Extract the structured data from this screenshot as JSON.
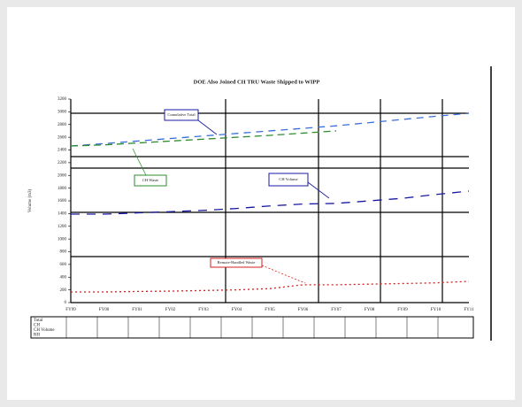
{
  "chart_data": {
    "type": "line",
    "title": "DOE Also Joined CH TRU Waste Shipped to WIPP",
    "y_label": "Volume (m3)",
    "categories": [
      "FY99",
      "FY00",
      "FY01",
      "FY02",
      "FY03",
      "FY04",
      "FY05",
      "FY06",
      "FY07",
      "FY08",
      "FY09",
      "FY10",
      "FY11"
    ],
    "series": [
      {
        "name": "Total",
        "color": "#3a6fd8",
        "dash": "8 6",
        "values": [
          2463,
          2500,
          2540,
          2580,
          2620,
          2660,
          2700,
          2740,
          2780,
          2830,
          2880,
          2930,
          2977
        ]
      },
      {
        "name": "CH",
        "color": "#2e8b2e",
        "dash": "8 5",
        "values": [
          2463,
          2480,
          2510,
          2540,
          2570,
          2600,
          2630,
          2665,
          2700,
          null,
          null,
          null,
          null
        ]
      },
      {
        "name": "CH Volume",
        "color": "#1a1aa0",
        "dash": "10 8",
        "values": [
          1391,
          1391,
          1410,
          1430,
          1450,
          1480,
          1520,
          1550,
          1560,
          1600,
          1640,
          1700,
          1753
        ]
      },
      {
        "name": "RH",
        "color": "#d42020",
        "dash": "2 3",
        "values": [
          167,
          167,
          175,
          180,
          190,
          200,
          220,
          280,
          280,
          290,
          300,
          310,
          334
        ]
      }
    ],
    "annotations": [
      "Cumulative Total",
      "CH Waste",
      "CH Volume",
      "Remote-Handled Waste"
    ],
    "ylim": [
      0,
      3200
    ],
    "yticks": [
      0,
      200,
      400,
      600,
      800,
      1000,
      1200,
      1400,
      1600,
      1800,
      2000,
      2200,
      2400,
      2600,
      2800,
      3000,
      3200
    ],
    "grid": false
  }
}
